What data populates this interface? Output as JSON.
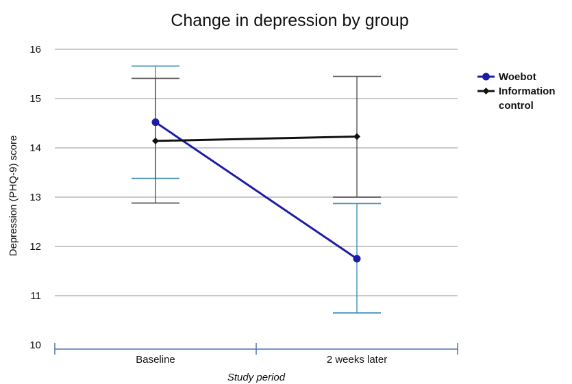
{
  "chart_data": {
    "type": "line",
    "title": "Change in depression by group",
    "xlabel": "Study period",
    "ylabel": "Depression (PHQ-9) score",
    "categories": [
      "Baseline",
      "2 weeks later"
    ],
    "ylim": [
      10,
      16
    ],
    "yticks": [
      10,
      11,
      12,
      13,
      14,
      15,
      16
    ],
    "ytick_labels": [
      "10",
      "11",
      "12",
      "13",
      "14",
      "15",
      "16"
    ],
    "grid": true,
    "legend_position": "right",
    "series": [
      {
        "name": "Woebot",
        "legend_label": [
          "Woebot"
        ],
        "values": [
          14.52,
          11.75
        ],
        "error_low": [
          13.38,
          10.65
        ],
        "error_high": [
          15.66,
          12.87
        ],
        "line_color": "#1c1ca6",
        "error_color": "#3f8fb5",
        "marker": "circle"
      },
      {
        "name": "Information control",
        "legend_label": [
          "Information",
          "control"
        ],
        "values": [
          14.14,
          14.23
        ],
        "error_low": [
          12.88,
          13.0
        ],
        "error_high": [
          15.41,
          15.45
        ],
        "line_color": "#111111",
        "error_color": "#555555",
        "marker": "diamond"
      }
    ]
  }
}
